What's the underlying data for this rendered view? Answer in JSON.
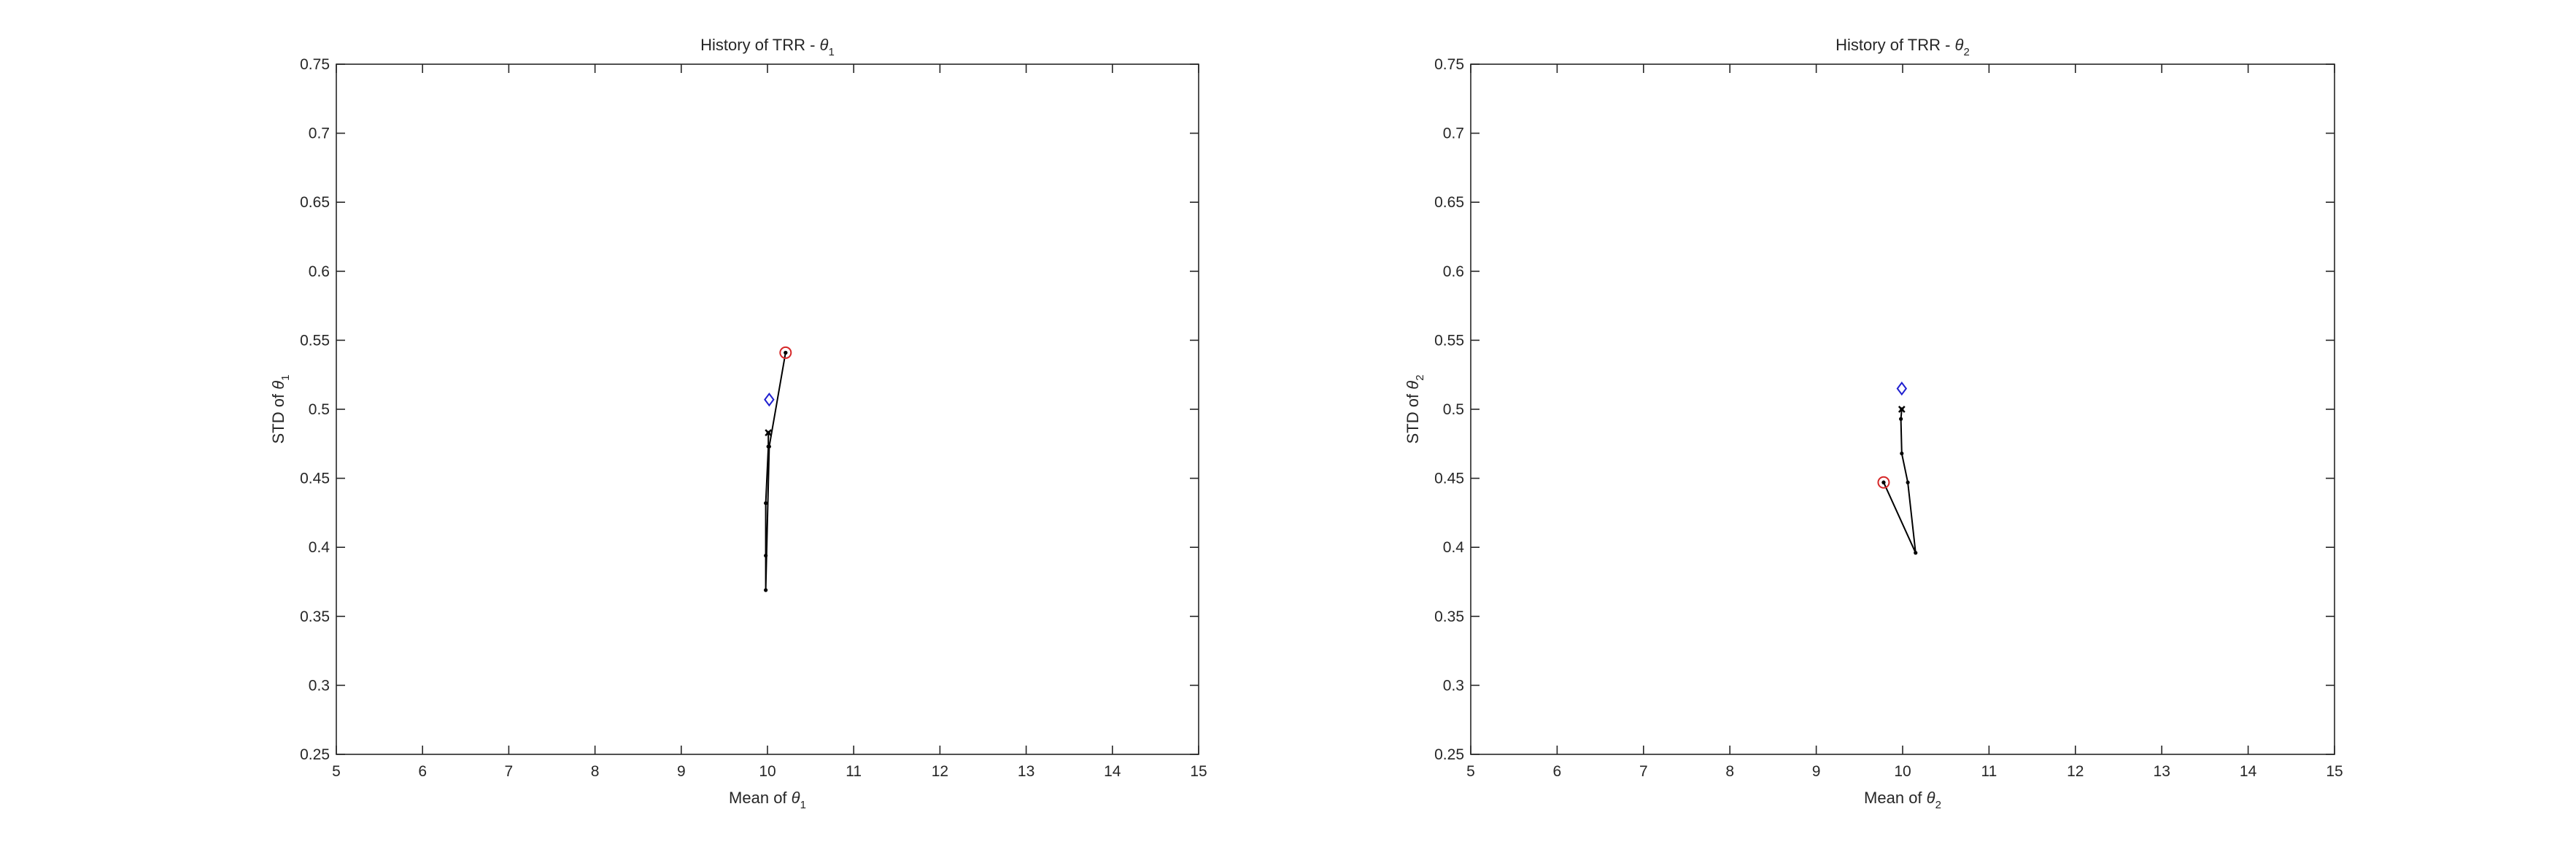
{
  "chart_data": [
    {
      "type": "line",
      "title": "History of TRR - ",
      "title_symbol": "θ",
      "title_subscript": "1",
      "xlabel": "Mean of ",
      "xlabel_symbol": "θ",
      "xlabel_subscript": "1",
      "ylabel": "STD of ",
      "ylabel_symbol": "θ",
      "ylabel_subscript": "1",
      "xlim": [
        5,
        15
      ],
      "ylim": [
        0.25,
        0.75
      ],
      "xticks": [
        "5",
        "6",
        "7",
        "8",
        "9",
        "10",
        "11",
        "12",
        "13",
        "14",
        "15"
      ],
      "yticks": [
        "0.25",
        "0.3",
        "0.35",
        "0.4",
        "0.45",
        "0.5",
        "0.55",
        "0.6",
        "0.65",
        "0.7",
        "0.75"
      ],
      "series": [
        {
          "name": "history",
          "x": [
            10.21,
            10.02,
            9.98,
            9.98,
            9.98,
            10.01,
            10.01
          ],
          "y": [
            0.541,
            0.473,
            0.369,
            0.394,
            0.432,
            0.473,
            0.483
          ]
        }
      ],
      "start_point": {
        "x": 10.21,
        "y": 0.541
      },
      "final_point": {
        "x": 10.01,
        "y": 0.483
      },
      "target_point": {
        "x": 10.02,
        "y": 0.507
      },
      "colors": {
        "start": "#d62728",
        "target": "#1f1fd0",
        "path": "#000000"
      }
    },
    {
      "type": "line",
      "title": "History of TRR - ",
      "title_symbol": "θ",
      "title_subscript": "2",
      "xlabel": "Mean of ",
      "xlabel_symbol": "θ",
      "xlabel_subscript": "2",
      "ylabel": "STD of ",
      "ylabel_symbol": "θ",
      "ylabel_subscript": "2",
      "xlim": [
        5,
        15
      ],
      "ylim": [
        0.25,
        0.75
      ],
      "xticks": [
        "5",
        "6",
        "7",
        "8",
        "9",
        "10",
        "11",
        "12",
        "13",
        "14",
        "15"
      ],
      "yticks": [
        "0.25",
        "0.3",
        "0.35",
        "0.4",
        "0.45",
        "0.5",
        "0.55",
        "0.6",
        "0.65",
        "0.7",
        "0.75"
      ],
      "series": [
        {
          "name": "history",
          "x": [
            9.78,
            10.15,
            10.06,
            9.99,
            9.98,
            9.99
          ],
          "y": [
            0.447,
            0.396,
            0.447,
            0.468,
            0.493,
            0.5
          ]
        }
      ],
      "start_point": {
        "x": 9.78,
        "y": 0.447
      },
      "final_point": {
        "x": 9.99,
        "y": 0.5
      },
      "target_point": {
        "x": 9.99,
        "y": 0.515
      },
      "colors": {
        "start": "#d62728",
        "target": "#1f1fd0",
        "path": "#000000"
      }
    }
  ]
}
